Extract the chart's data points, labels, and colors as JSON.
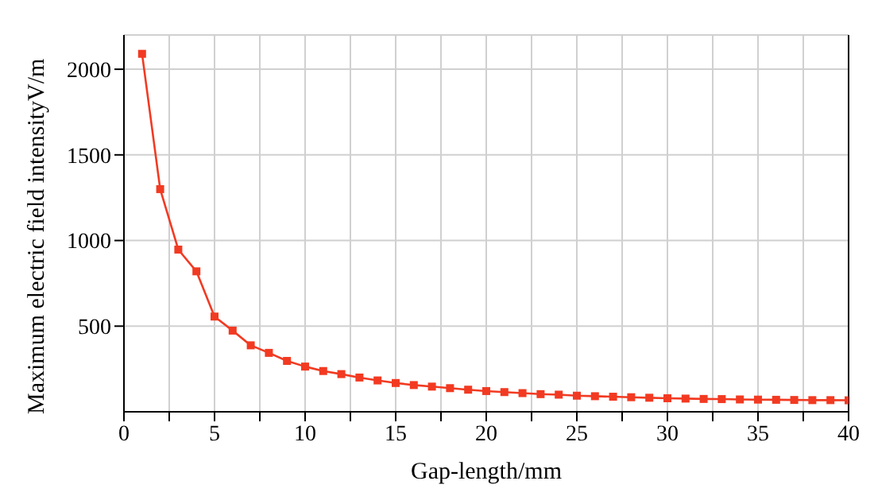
{
  "chart_data": {
    "type": "line",
    "xlabel": "Gap-length/mm",
    "ylabel": "Maximum electric field intensityV/m",
    "x": [
      1,
      2,
      3,
      4,
      5,
      6,
      7,
      8,
      9,
      10,
      11,
      12,
      13,
      14,
      15,
      16,
      17,
      18,
      19,
      20,
      21,
      22,
      23,
      24,
      25,
      26,
      27,
      28,
      29,
      30,
      31,
      32,
      33,
      34,
      35,
      36,
      37,
      38,
      39,
      40
    ],
    "series": [
      {
        "color": "#f23a22",
        "values": [
          2090,
          1300,
          947,
          820,
          556,
          474,
          388,
          344,
          297,
          264,
          238,
          220,
          200,
          183,
          168,
          156,
          147,
          138,
          129,
          121,
          115,
          109,
          103,
          100,
          94,
          91,
          88,
          85,
          82,
          79,
          77,
          75,
          74,
          72,
          71,
          70,
          69,
          68,
          68,
          67
        ]
      }
    ],
    "xlim": [
      0,
      40
    ],
    "xticks": [
      0,
      {
        "value": 2.5,
        "label": null
      },
      5,
      {
        "value": 7.5,
        "label": null
      },
      10,
      {
        "value": 12.5,
        "label": null
      },
      15,
      {
        "value": 17.5,
        "label": null
      },
      20,
      {
        "value": 22.5,
        "label": null
      },
      25,
      {
        "value": 27.5,
        "label": null
      },
      30,
      {
        "value": 32.5,
        "label": null
      },
      35,
      {
        "value": 37.5,
        "label": null
      },
      40
    ],
    "ylim": [
      0,
      2200
    ],
    "yticks": [
      500,
      1000,
      1500,
      2000
    ],
    "grid": true,
    "marker": "square",
    "line_style": "solid"
  }
}
